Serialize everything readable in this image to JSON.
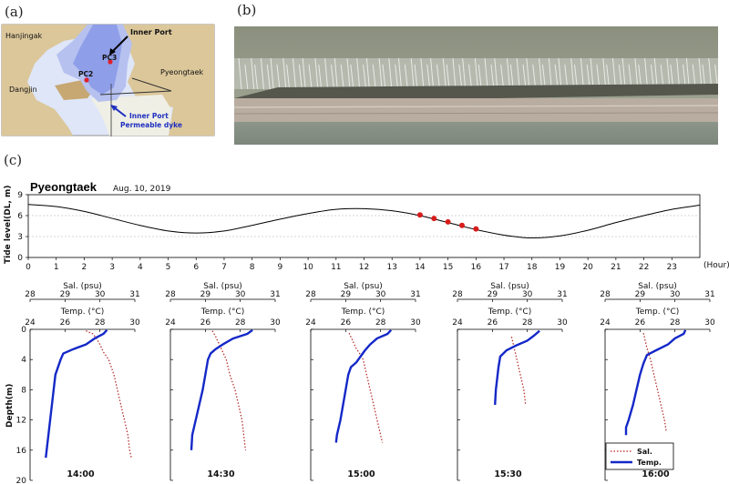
{
  "panels": {
    "a": "(a)",
    "b": "(b)",
    "c": "(c)"
  },
  "map": {
    "labels": [
      "Hanjingak",
      "Dangjin",
      "Pyeongtaek",
      "PC2",
      "PC3"
    ],
    "inner_port": "Inner Port",
    "dyke_line1": "Inner Port",
    "dyke_line2": "Permeable dyke",
    "colors": {
      "land": "#dcc79a",
      "deep": "#8f9ee8",
      "mid": "#b6c1f0",
      "shallow": "#dfe6f8",
      "station": "#e0202a",
      "dyke_arrow": "#2030c0"
    }
  },
  "tide": {
    "station": "Pyeongtaek",
    "date": "Aug. 10, 2019",
    "hour_unit": "(Hour)",
    "ylabel": "Tide level(DL, m)"
  },
  "profiles": {
    "ylabel": "Depth(m)",
    "sal_label": "Sal. (psu)",
    "temp_label": "Temp. (°C)",
    "legend_sal": "Sal.",
    "legend_temp": "Temp."
  },
  "chart_data": [
    {
      "type": "line",
      "title": "Pyeongtaek",
      "subtitle": "Aug. 10, 2019",
      "xlabel": "(Hour)",
      "ylabel": "Tide level(DL, m)",
      "xlim": [
        0,
        24
      ],
      "ylim": [
        0,
        9
      ],
      "xticks": [
        0,
        1,
        2,
        3,
        4,
        5,
        6,
        7,
        8,
        9,
        10,
        11,
        12,
        13,
        14,
        15,
        16,
        17,
        18,
        19,
        20,
        21,
        22,
        23
      ],
      "yticks": [
        0,
        3,
        6,
        9
      ],
      "grid": "dashed at y=3 and y=6",
      "series": [
        {
          "color": "#000000",
          "x": [
            0,
            1,
            2,
            3,
            4,
            5,
            6,
            7,
            8,
            9,
            10,
            11,
            12,
            13,
            14,
            15,
            16,
            17,
            18,
            19,
            20,
            21,
            22,
            23,
            24
          ],
          "y": [
            7.6,
            7.3,
            6.6,
            5.6,
            4.6,
            3.8,
            3.5,
            3.8,
            4.6,
            5.5,
            6.3,
            6.9,
            7.0,
            6.7,
            6.0,
            5.0,
            4.0,
            3.2,
            2.8,
            3.1,
            3.9,
            5.0,
            6.0,
            6.9,
            7.5
          ]
        }
      ],
      "sample_points": {
        "color": "#d81c1c",
        "x": [
          14.0,
          14.5,
          15.0,
          15.5,
          16.0
        ],
        "y": [
          6.1,
          5.6,
          5.1,
          4.6,
          4.1
        ]
      }
    },
    {
      "type": "line",
      "title": "14:00",
      "ylabel": "Depth(m)",
      "ylim": [
        0,
        20
      ],
      "yticks": [
        0,
        4,
        8,
        12,
        16,
        20
      ],
      "sal_axis": {
        "label": "Sal. (psu)",
        "range": [
          28,
          31
        ],
        "ticks": [
          28,
          29,
          30,
          31
        ]
      },
      "temp_axis": {
        "label": "Temp. (°C)",
        "range": [
          24,
          30
        ],
        "ticks": [
          24,
          26,
          28,
          30
        ]
      },
      "series": [
        {
          "name": "Sal.",
          "color": "#b22222",
          "style": "dotted",
          "depth": [
            0.2,
            0.6,
            1.2,
            2.0,
            3.0,
            4.0,
            6.0,
            8.0,
            10.0,
            12.0,
            14.0,
            16.0,
            17.0
          ],
          "value": [
            29.6,
            29.8,
            29.9,
            30.0,
            30.1,
            30.25,
            30.4,
            30.5,
            30.6,
            30.7,
            30.8,
            30.85,
            30.9
          ]
        },
        {
          "name": "Temp.",
          "color": "#1428c8",
          "style": "solid",
          "depth": [
            0.1,
            0.6,
            1.2,
            2.0,
            2.6,
            3.2,
            4.0,
            5.0,
            6.0,
            8.0,
            10.0,
            12.0,
            14.0,
            16.0,
            17.0
          ],
          "value": [
            28.4,
            28.2,
            27.7,
            27.2,
            26.5,
            25.9,
            25.75,
            25.6,
            25.45,
            25.35,
            25.25,
            25.15,
            25.05,
            24.95,
            24.9
          ]
        }
      ]
    },
    {
      "type": "line",
      "title": "14:30",
      "ylabel": "Depth(m)",
      "ylim": [
        0,
        20
      ],
      "yticks": [
        0,
        4,
        8,
        12,
        16,
        20
      ],
      "sal_axis": {
        "label": "Sal. (psu)",
        "range": [
          28,
          31
        ],
        "ticks": [
          28,
          29,
          30,
          31
        ]
      },
      "temp_axis": {
        "label": "Temp. (°C)",
        "range": [
          24,
          30
        ],
        "ticks": [
          24,
          26,
          28,
          30
        ]
      },
      "series": [
        {
          "name": "Sal.",
          "color": "#b22222",
          "style": "dotted",
          "depth": [
            0.2,
            1.0,
            2.0,
            3.0,
            4.0,
            6.0,
            8.0,
            10.0,
            12.0,
            14.0,
            16.0
          ],
          "value": [
            29.2,
            29.3,
            29.4,
            29.5,
            29.6,
            29.7,
            29.85,
            29.95,
            30.05,
            30.1,
            30.15
          ]
        },
        {
          "name": "Temp.",
          "color": "#1428c8",
          "style": "solid",
          "depth": [
            0.1,
            0.6,
            1.2,
            2.0,
            2.6,
            3.2,
            4.0,
            6.0,
            8.0,
            10.0,
            12.0,
            14.0,
            16.0
          ],
          "value": [
            28.7,
            28.4,
            27.6,
            27.0,
            26.6,
            26.3,
            26.15,
            26.0,
            25.85,
            25.65,
            25.45,
            25.25,
            25.2
          ]
        }
      ]
    },
    {
      "type": "line",
      "title": "15:00",
      "ylabel": "Depth(m)",
      "ylim": [
        0,
        20
      ],
      "yticks": [
        0,
        4,
        8,
        12,
        16,
        20
      ],
      "sal_axis": {
        "label": "Sal. (psu)",
        "range": [
          28,
          31
        ],
        "ticks": [
          28,
          29,
          30,
          31
        ]
      },
      "temp_axis": {
        "label": "Temp. (°C)",
        "range": [
          24,
          30
        ],
        "ticks": [
          24,
          26,
          28,
          30
        ]
      },
      "series": [
        {
          "name": "Sal.",
          "color": "#b22222",
          "style": "dotted",
          "depth": [
            0.5,
            1.5,
            2.5,
            3.2,
            4.0,
            6.0,
            8.0,
            10.0,
            12.0,
            14.0,
            15.0
          ],
          "value": [
            29.1,
            29.2,
            29.3,
            29.4,
            29.5,
            29.6,
            29.7,
            29.8,
            29.9,
            30.0,
            30.05
          ]
        },
        {
          "name": "Temp.",
          "color": "#1428c8",
          "style": "solid",
          "depth": [
            0.1,
            0.6,
            1.2,
            2.0,
            2.8,
            3.6,
            4.4,
            5.0,
            6.0,
            8.0,
            10.0,
            12.0,
            14.0,
            15.0
          ],
          "value": [
            28.6,
            28.4,
            27.8,
            27.4,
            27.1,
            26.85,
            26.6,
            26.3,
            26.15,
            26.0,
            25.85,
            25.7,
            25.5,
            25.45
          ]
        }
      ]
    },
    {
      "type": "line",
      "title": "15:30",
      "ylabel": "Depth(m)",
      "ylim": [
        0,
        20
      ],
      "yticks": [
        0,
        4,
        8,
        12,
        16,
        20
      ],
      "sal_axis": {
        "label": "Sal. (psu)",
        "range": [
          28,
          31
        ],
        "ticks": [
          28,
          29,
          30,
          31
        ]
      },
      "temp_axis": {
        "label": "Temp. (°C)",
        "range": [
          24,
          30
        ],
        "ticks": [
          24,
          26,
          28,
          30
        ]
      },
      "series": [
        {
          "name": "Sal.",
          "color": "#b22222",
          "style": "dotted",
          "depth": [
            1.0,
            2.0,
            3.0,
            4.0,
            6.0,
            8.0,
            10.0
          ],
          "value": [
            29.55,
            29.6,
            29.65,
            29.7,
            29.8,
            29.9,
            29.95
          ]
        },
        {
          "name": "Temp.",
          "color": "#1428c8",
          "style": "solid",
          "depth": [
            0.2,
            0.8,
            1.5,
            2.2,
            2.8,
            3.6,
            5.0,
            6.0,
            8.0,
            10.0
          ],
          "value": [
            28.7,
            28.4,
            28.0,
            27.3,
            26.8,
            26.45,
            26.35,
            26.3,
            26.2,
            26.15
          ]
        }
      ]
    },
    {
      "type": "line",
      "title": "16:00",
      "ylabel": "Depth(m)",
      "ylim": [
        0,
        20
      ],
      "yticks": [
        0,
        4,
        8,
        12,
        16,
        20
      ],
      "sal_axis": {
        "label": "Sal. (psu)",
        "range": [
          28,
          31
        ],
        "ticks": [
          28,
          29,
          30,
          31
        ]
      },
      "temp_axis": {
        "label": "Temp. (°C)",
        "range": [
          24,
          30
        ],
        "ticks": [
          24,
          26,
          28,
          30
        ]
      },
      "series": [
        {
          "name": "Sal.",
          "color": "#b22222",
          "style": "dotted",
          "depth": [
            0.5,
            1.5,
            2.5,
            4.0,
            6.0,
            8.0,
            10.0,
            12.0,
            13.5
          ],
          "value": [
            29.1,
            29.15,
            29.2,
            29.3,
            29.4,
            29.5,
            29.6,
            29.7,
            29.75
          ]
        },
        {
          "name": "Temp.",
          "color": "#1428c8",
          "style": "solid",
          "depth": [
            0.1,
            0.6,
            1.2,
            2.0,
            2.8,
            3.4,
            4.5,
            6.0,
            8.0,
            10.0,
            12.0,
            13.0,
            14.0
          ],
          "value": [
            28.6,
            28.5,
            28.0,
            27.6,
            26.9,
            26.4,
            26.2,
            26.0,
            25.8,
            25.6,
            25.35,
            25.2,
            25.2
          ]
        }
      ]
    }
  ]
}
